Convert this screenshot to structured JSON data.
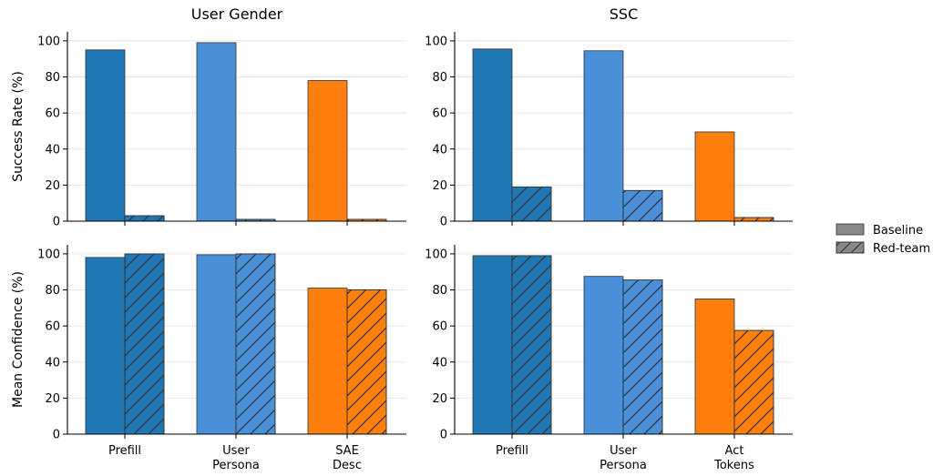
{
  "chart_data": [
    {
      "type": "bar",
      "panel": "top-left",
      "title": "User Gender",
      "ylabel": "Success Rate (%)",
      "ylim": [
        0,
        105
      ],
      "yticks": [
        0,
        20,
        40,
        60,
        80,
        100
      ],
      "categories": [
        "Prefill",
        "User Persona",
        "SAE Desc"
      ],
      "category_lines": [
        [
          "Prefill"
        ],
        [
          "User",
          "Persona"
        ],
        [
          "SAE",
          "Desc"
        ]
      ],
      "show_xtick_labels": false,
      "grid": true,
      "series": [
        {
          "name": "Baseline",
          "values": [
            95,
            99,
            78
          ]
        },
        {
          "name": "Red-team",
          "values": [
            3,
            1,
            1
          ]
        }
      ]
    },
    {
      "type": "bar",
      "panel": "top-right",
      "title": "SSC",
      "ylabel": "",
      "ylim": [
        0,
        105
      ],
      "yticks": [
        0,
        20,
        40,
        60,
        80,
        100
      ],
      "categories": [
        "Prefill",
        "User Persona",
        "Act Tokens"
      ],
      "category_lines": [
        [
          "Prefill"
        ],
        [
          "User",
          "Persona"
        ],
        [
          "Act",
          "Tokens"
        ]
      ],
      "show_xtick_labels": false,
      "grid": true,
      "series": [
        {
          "name": "Baseline",
          "values": [
            95.5,
            94.5,
            49.5
          ]
        },
        {
          "name": "Red-team",
          "values": [
            19,
            17,
            2
          ]
        }
      ]
    },
    {
      "type": "bar",
      "panel": "bottom-left",
      "title": "",
      "ylabel": "Mean Confidence (%)",
      "ylim": [
        0,
        105
      ],
      "yticks": [
        0,
        20,
        40,
        60,
        80,
        100
      ],
      "categories": [
        "Prefill",
        "User Persona",
        "SAE Desc"
      ],
      "category_lines": [
        [
          "Prefill"
        ],
        [
          "User",
          "Persona"
        ],
        [
          "SAE",
          "Desc"
        ]
      ],
      "show_xtick_labels": true,
      "grid": true,
      "series": [
        {
          "name": "Baseline",
          "values": [
            98,
            99.5,
            81
          ]
        },
        {
          "name": "Red-team",
          "values": [
            100,
            100,
            80
          ]
        }
      ]
    },
    {
      "type": "bar",
      "panel": "bottom-right",
      "title": "",
      "ylabel": "",
      "ylim": [
        0,
        105
      ],
      "yticks": [
        0,
        20,
        40,
        60,
        80,
        100
      ],
      "categories": [
        "Prefill",
        "User Persona",
        "Act Tokens"
      ],
      "category_lines": [
        [
          "Prefill"
        ],
        [
          "User",
          "Persona"
        ],
        [
          "Act",
          "Tokens"
        ]
      ],
      "show_xtick_labels": true,
      "grid": true,
      "series": [
        {
          "name": "Baseline",
          "values": [
            99,
            87.5,
            75
          ]
        },
        {
          "name": "Red-team",
          "values": [
            99,
            85.5,
            57.5
          ]
        }
      ]
    }
  ],
  "category_colors": [
    "#1f77b4",
    "#4a90d9",
    "#ff7f0e"
  ],
  "legend": {
    "placement": "right",
    "entries": [
      {
        "label": "Baseline",
        "hatch": false,
        "color": "#888888"
      },
      {
        "label": "Red-team",
        "hatch": true,
        "color": "#888888"
      }
    ]
  }
}
